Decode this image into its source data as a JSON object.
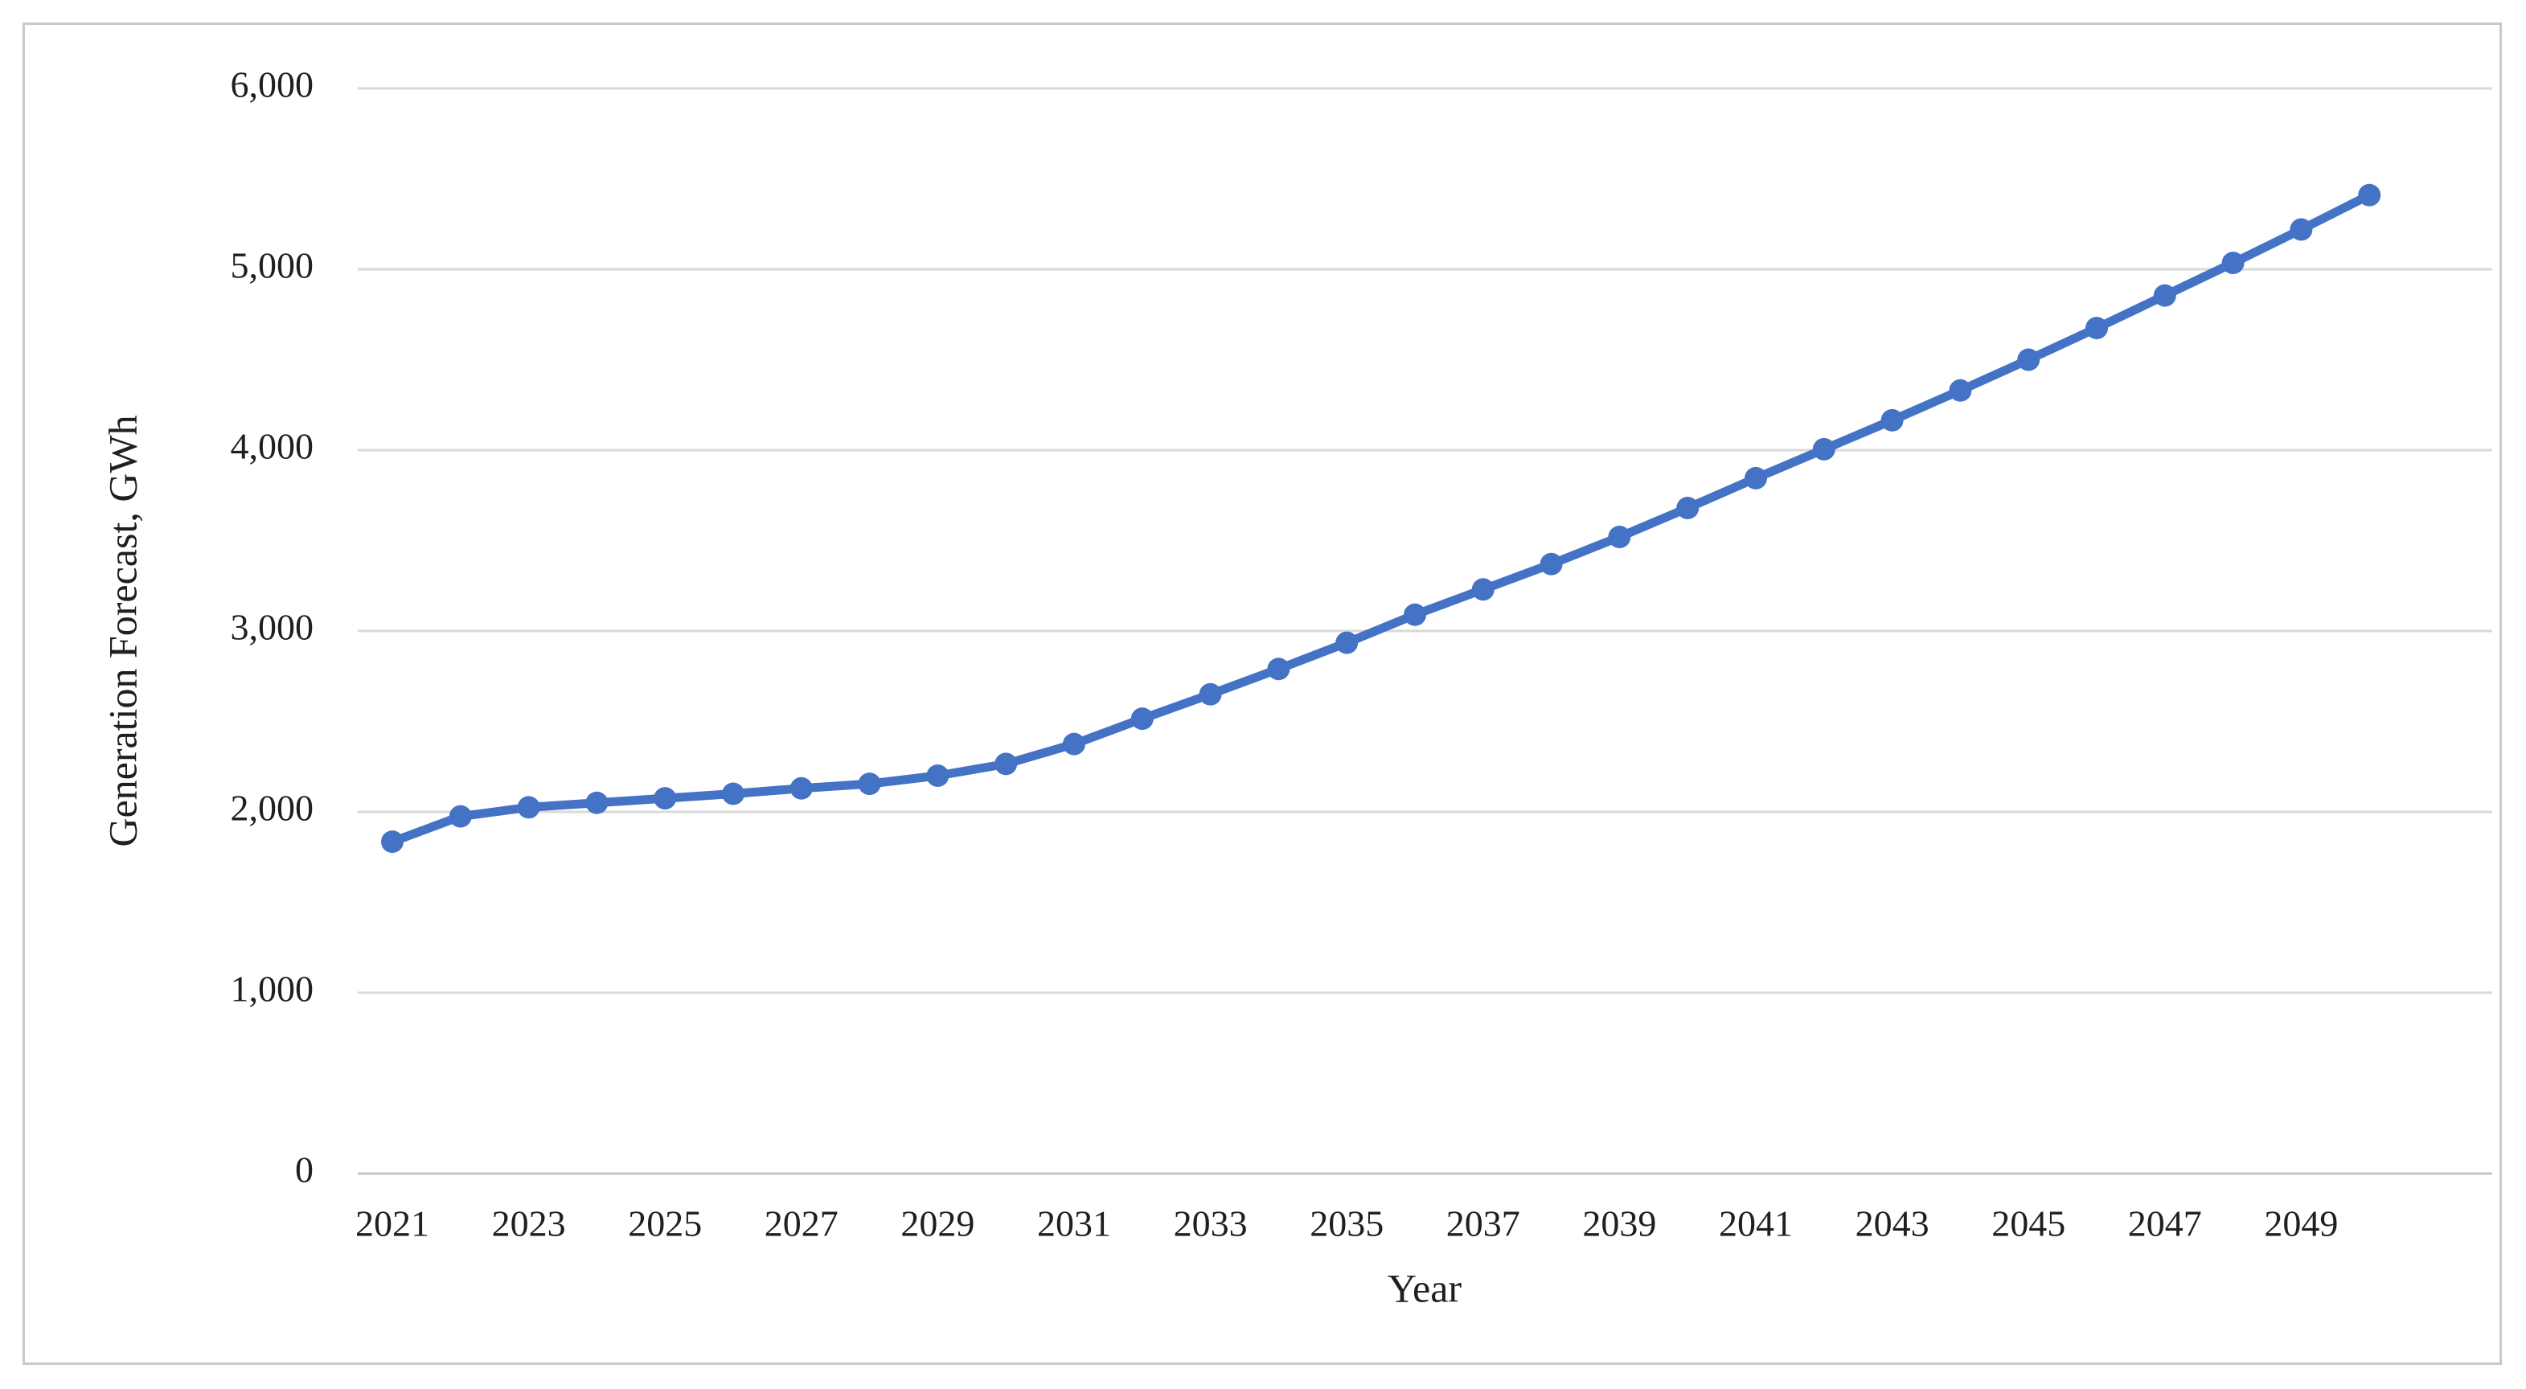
{
  "figure": {
    "background_color": "#ffffff",
    "frame_border_color": "#c9c9c9"
  },
  "chart_data": {
    "type": "line",
    "title": "",
    "xlabel": "Year",
    "ylabel": "Generation Forecast, GWh",
    "legend": "none",
    "grid": "horizontal",
    "marker": "circle",
    "line_color": "#4472C4",
    "gridline_color": "#d9d9d9",
    "baseline_color": "#c6c6c6",
    "ylim": [
      0,
      6000
    ],
    "ytick_step": 1000,
    "yticks": [
      {
        "value": 0,
        "label": "0"
      },
      {
        "value": 1000,
        "label": "1,000"
      },
      {
        "value": 2000,
        "label": "2,000"
      },
      {
        "value": 3000,
        "label": "3,000"
      },
      {
        "value": 4000,
        "label": "4,000"
      },
      {
        "value": 5000,
        "label": "5,000"
      },
      {
        "value": 6000,
        "label": "6,000"
      }
    ],
    "xticks": [
      {
        "value": 2021,
        "label": "2021"
      },
      {
        "value": 2023,
        "label": "2023"
      },
      {
        "value": 2025,
        "label": "2025"
      },
      {
        "value": 2027,
        "label": "2027"
      },
      {
        "value": 2029,
        "label": "2029"
      },
      {
        "value": 2031,
        "label": "2031"
      },
      {
        "value": 2033,
        "label": "2033"
      },
      {
        "value": 2035,
        "label": "2035"
      },
      {
        "value": 2037,
        "label": "2037"
      },
      {
        "value": 2039,
        "label": "2039"
      },
      {
        "value": 2041,
        "label": "2041"
      },
      {
        "value": 2043,
        "label": "2043"
      },
      {
        "value": 2045,
        "label": "2045"
      },
      {
        "value": 2047,
        "label": "2047"
      },
      {
        "value": 2049,
        "label": "2049"
      }
    ],
    "x": [
      2021,
      2022,
      2023,
      2024,
      2025,
      2026,
      2027,
      2028,
      2029,
      2030,
      2031,
      2032,
      2033,
      2034,
      2035,
      2036,
      2037,
      2038,
      2039,
      2040,
      2041,
      2042,
      2043,
      2044,
      2045,
      2046,
      2047,
      2048,
      2049,
      2050
    ],
    "series": [
      {
        "name": "Generation Forecast",
        "color": "#4472C4",
        "values": [
          1835,
          1975,
          2025,
          2050,
          2075,
          2100,
          2130,
          2155,
          2200,
          2265,
          2375,
          2515,
          2650,
          2790,
          2935,
          3090,
          3230,
          3370,
          3520,
          3680,
          3845,
          4005,
          4165,
          4330,
          4500,
          4675,
          4855,
          5035,
          5220,
          5410
        ]
      }
    ]
  }
}
